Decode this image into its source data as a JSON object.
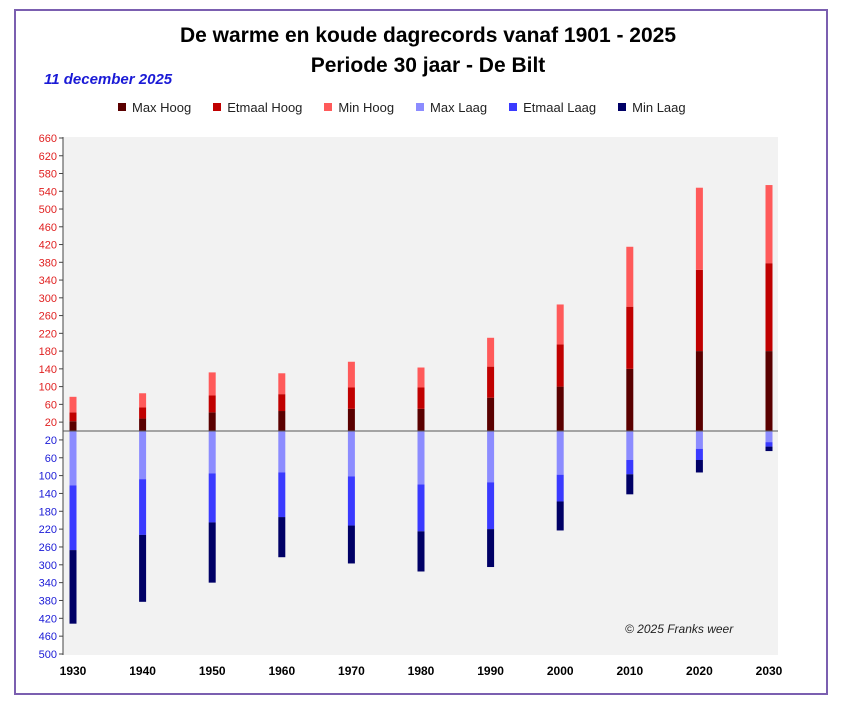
{
  "chart_data": {
    "type": "bar",
    "title": "De warme en koude dagrecords vanaf 1901 - 2025",
    "subtitle": "Periode 30 jaar - De Bilt",
    "date": "11 december 2025",
    "copyright": "© 2025 Franks weer",
    "legend": [
      {
        "name": "Max Hoog",
        "color": "#5a0000"
      },
      {
        "name": "Etmaal Hoog",
        "color": "#c00000"
      },
      {
        "name": "Min Hoog",
        "color": "#ff5a5a"
      },
      {
        "name": "Max Laag",
        "color": "#8c8cff"
      },
      {
        "name": "Etmaal Laag",
        "color": "#3a3aff"
      },
      {
        "name": "Min Laag",
        "color": "#000066"
      }
    ],
    "categories": [
      "1930",
      "1940",
      "1950",
      "1960",
      "1970",
      "1980",
      "1990",
      "2000",
      "2010",
      "2020",
      "2030"
    ],
    "x_ticks": [
      "1930",
      "1940",
      "1950",
      "1960",
      "1970",
      "1980",
      "1990",
      "2000",
      "2010",
      "2020",
      "2030"
    ],
    "series_high": [
      {
        "name": "Max Hoog",
        "values": [
          22,
          28,
          42,
          45,
          50,
          50,
          75,
          100,
          140,
          180,
          180
        ]
      },
      {
        "name": "Etmaal Hoog",
        "values": [
          20,
          25,
          38,
          38,
          48,
          48,
          70,
          95,
          140,
          183,
          198
        ]
      },
      {
        "name": "Min Hoog",
        "values": [
          35,
          32,
          52,
          47,
          58,
          45,
          65,
          90,
          135,
          185,
          176
        ]
      }
    ],
    "series_low": [
      {
        "name": "Max Laag",
        "values": [
          122,
          108,
          95,
          93,
          102,
          120,
          115,
          98,
          65,
          40,
          25
        ]
      },
      {
        "name": "Etmaal Laag",
        "values": [
          145,
          125,
          110,
          100,
          110,
          105,
          105,
          60,
          32,
          25,
          10
        ]
      },
      {
        "name": "Min Laag",
        "values": [
          165,
          150,
          135,
          90,
          85,
          90,
          85,
          65,
          45,
          28,
          10
        ]
      }
    ],
    "y_ticks_high": [
      "660",
      "620",
      "580",
      "540",
      "500",
      "460",
      "420",
      "380",
      "340",
      "300",
      "260",
      "220",
      "180",
      "140",
      "100",
      "60",
      "20"
    ],
    "y_ticks_low": [
      "20",
      "60",
      "100",
      "140",
      "180",
      "220",
      "260",
      "300",
      "340",
      "380",
      "420",
      "460",
      "500"
    ],
    "ylim_high": [
      0,
      660
    ],
    "ylim_low": [
      0,
      500
    ],
    "grid": false,
    "legend_position": "top"
  }
}
